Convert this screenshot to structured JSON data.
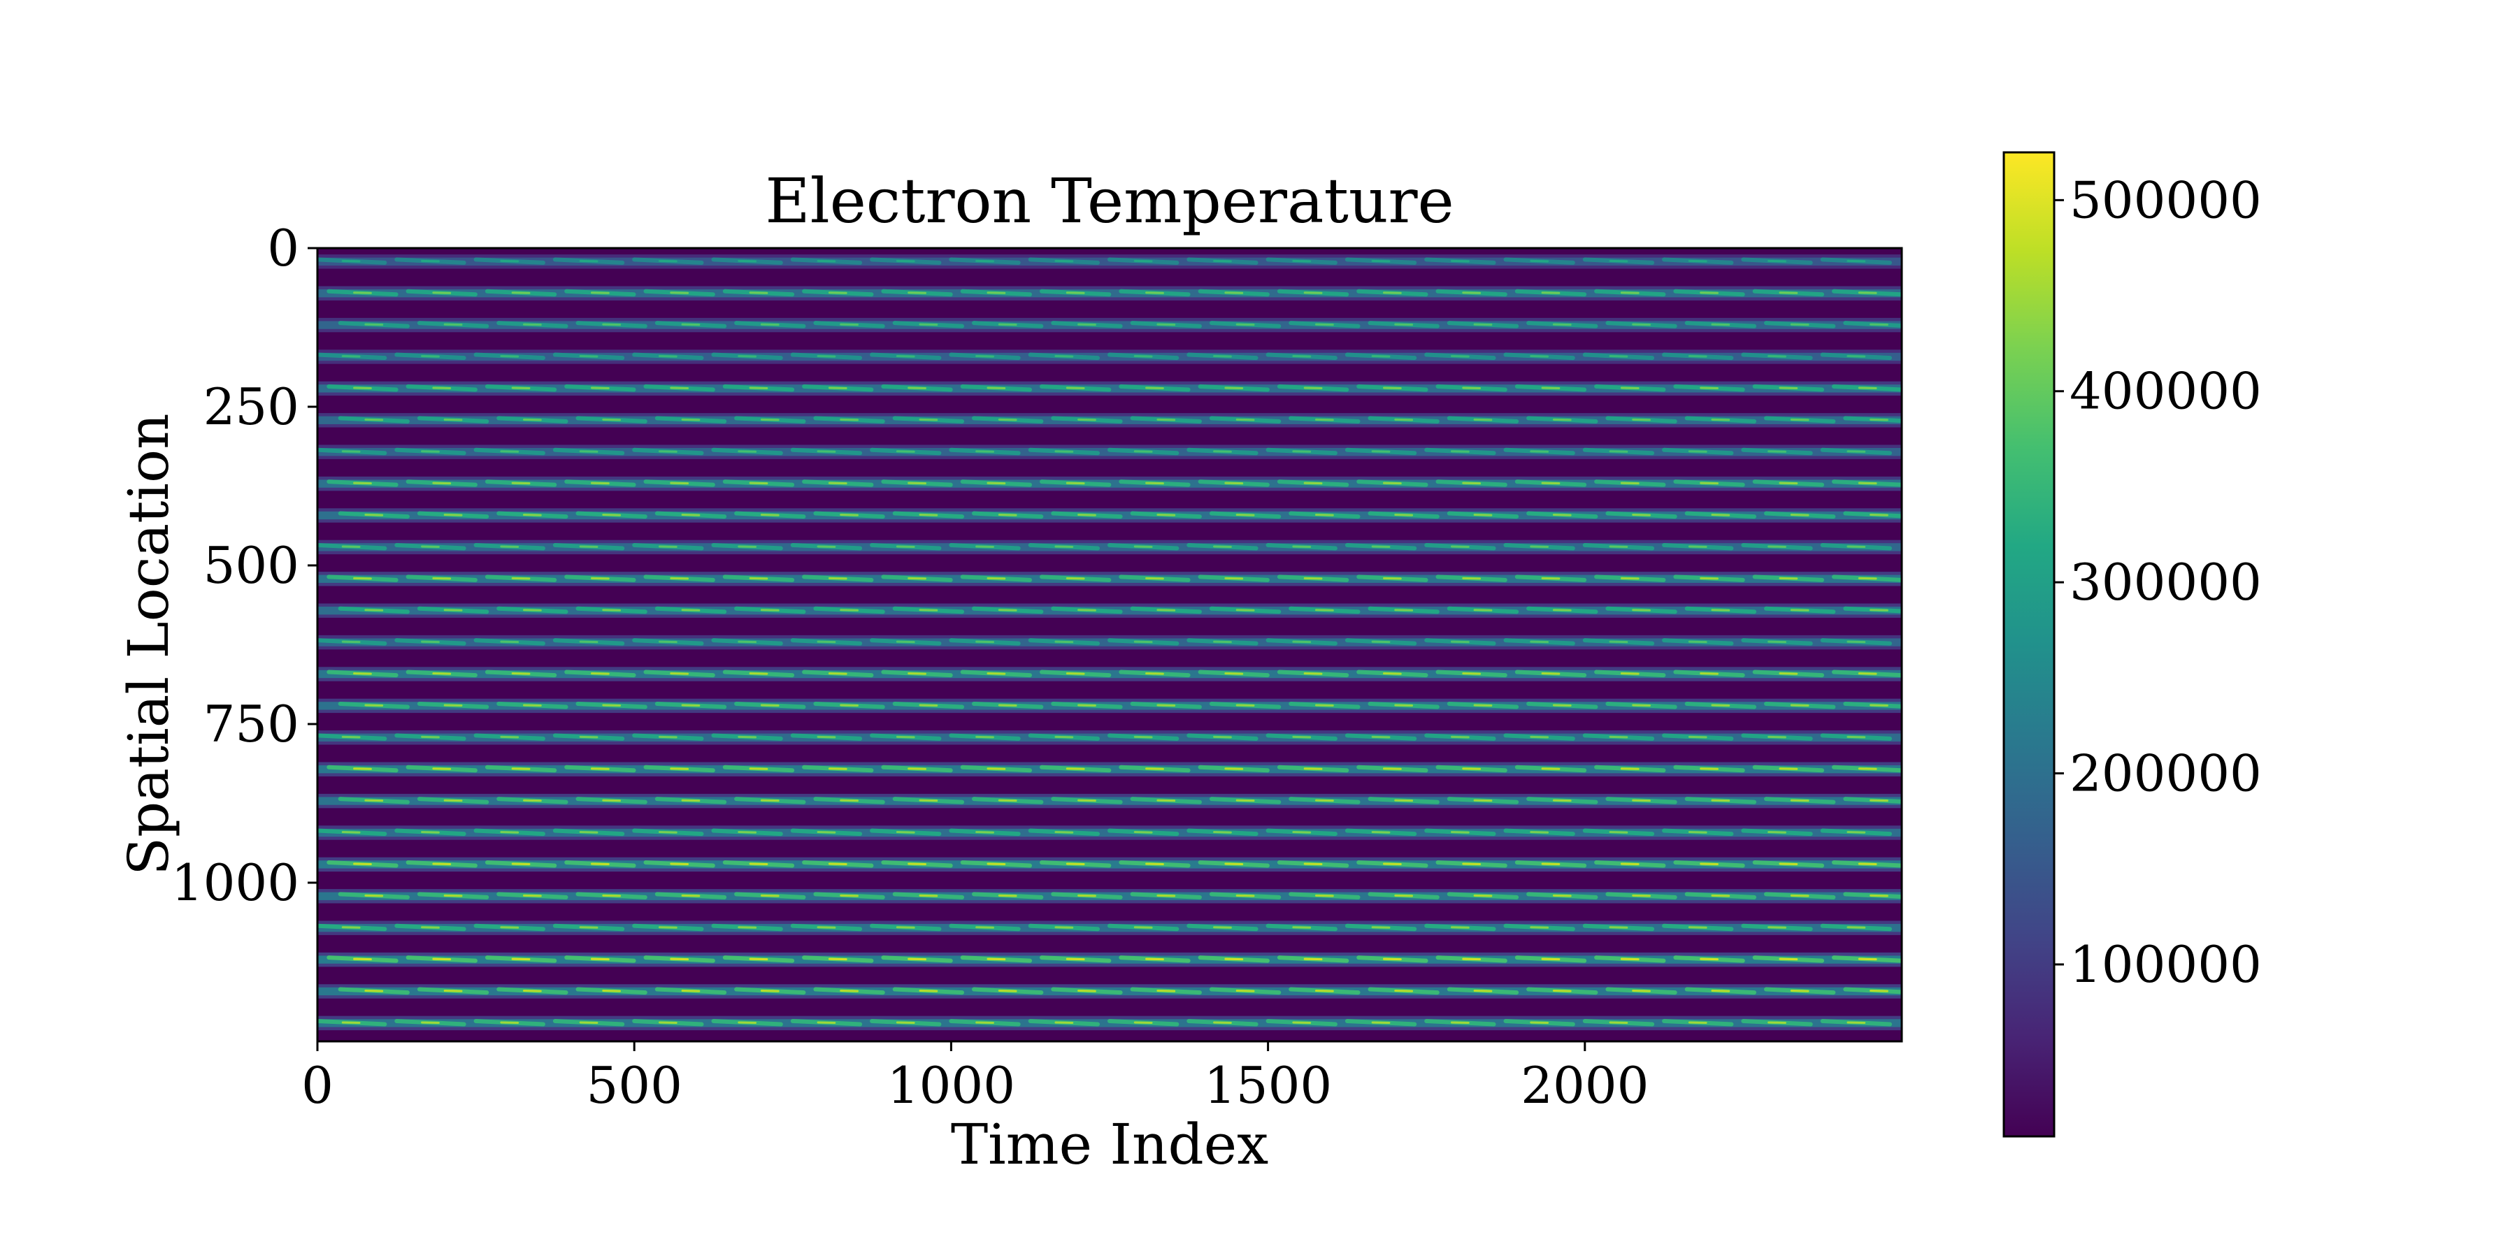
{
  "chart_data": {
    "type": "heatmap",
    "title": "Electron Temperature",
    "xlabel": "Time Index",
    "ylabel": "Spatial Location",
    "xlim": [
      0,
      2500
    ],
    "ylim": [
      1250,
      0
    ],
    "y_inverted": true,
    "x_ticks": [
      0,
      500,
      1000,
      1500,
      2000
    ],
    "x_tick_labels": [
      "0",
      "500",
      "1000",
      "1500",
      "2000"
    ],
    "y_ticks": [
      0,
      250,
      500,
      750,
      1000
    ],
    "y_tick_labels": [
      "0",
      "250",
      "500",
      "750",
      "1000"
    ],
    "colormap": "viridis",
    "colorbar": {
      "min": 10000,
      "max": 525000,
      "ticks": [
        100000,
        200000,
        300000,
        400000,
        500000
      ],
      "tick_labels": [
        "100000",
        "200000",
        "300000",
        "400000",
        "500000"
      ],
      "placement": "right"
    },
    "band_period": 50,
    "band_count": 25,
    "band_peaks": [
      320000,
      410000,
      380000,
      350000,
      420000,
      400000,
      370000,
      440000,
      430000,
      390000,
      450000,
      420000,
      380000,
      460000,
      440000,
      410000,
      470000,
      450000,
      420000,
      480000,
      460000,
      430000,
      490000,
      470000,
      450000
    ],
    "grid": false
  }
}
